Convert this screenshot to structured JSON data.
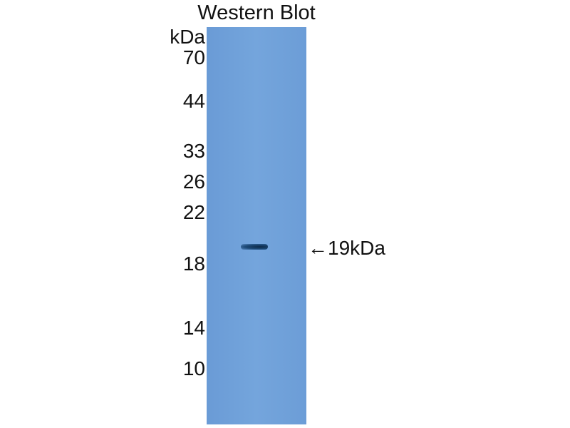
{
  "title": "Western Blot",
  "unit_label": "kDa",
  "markers": [
    "70",
    "44",
    "33",
    "26",
    "22",
    "18",
    "14",
    "10"
  ],
  "band_annotation": "←19kDa",
  "colors": {
    "membrane": "#6fa0d8",
    "band": "#163b63"
  }
}
